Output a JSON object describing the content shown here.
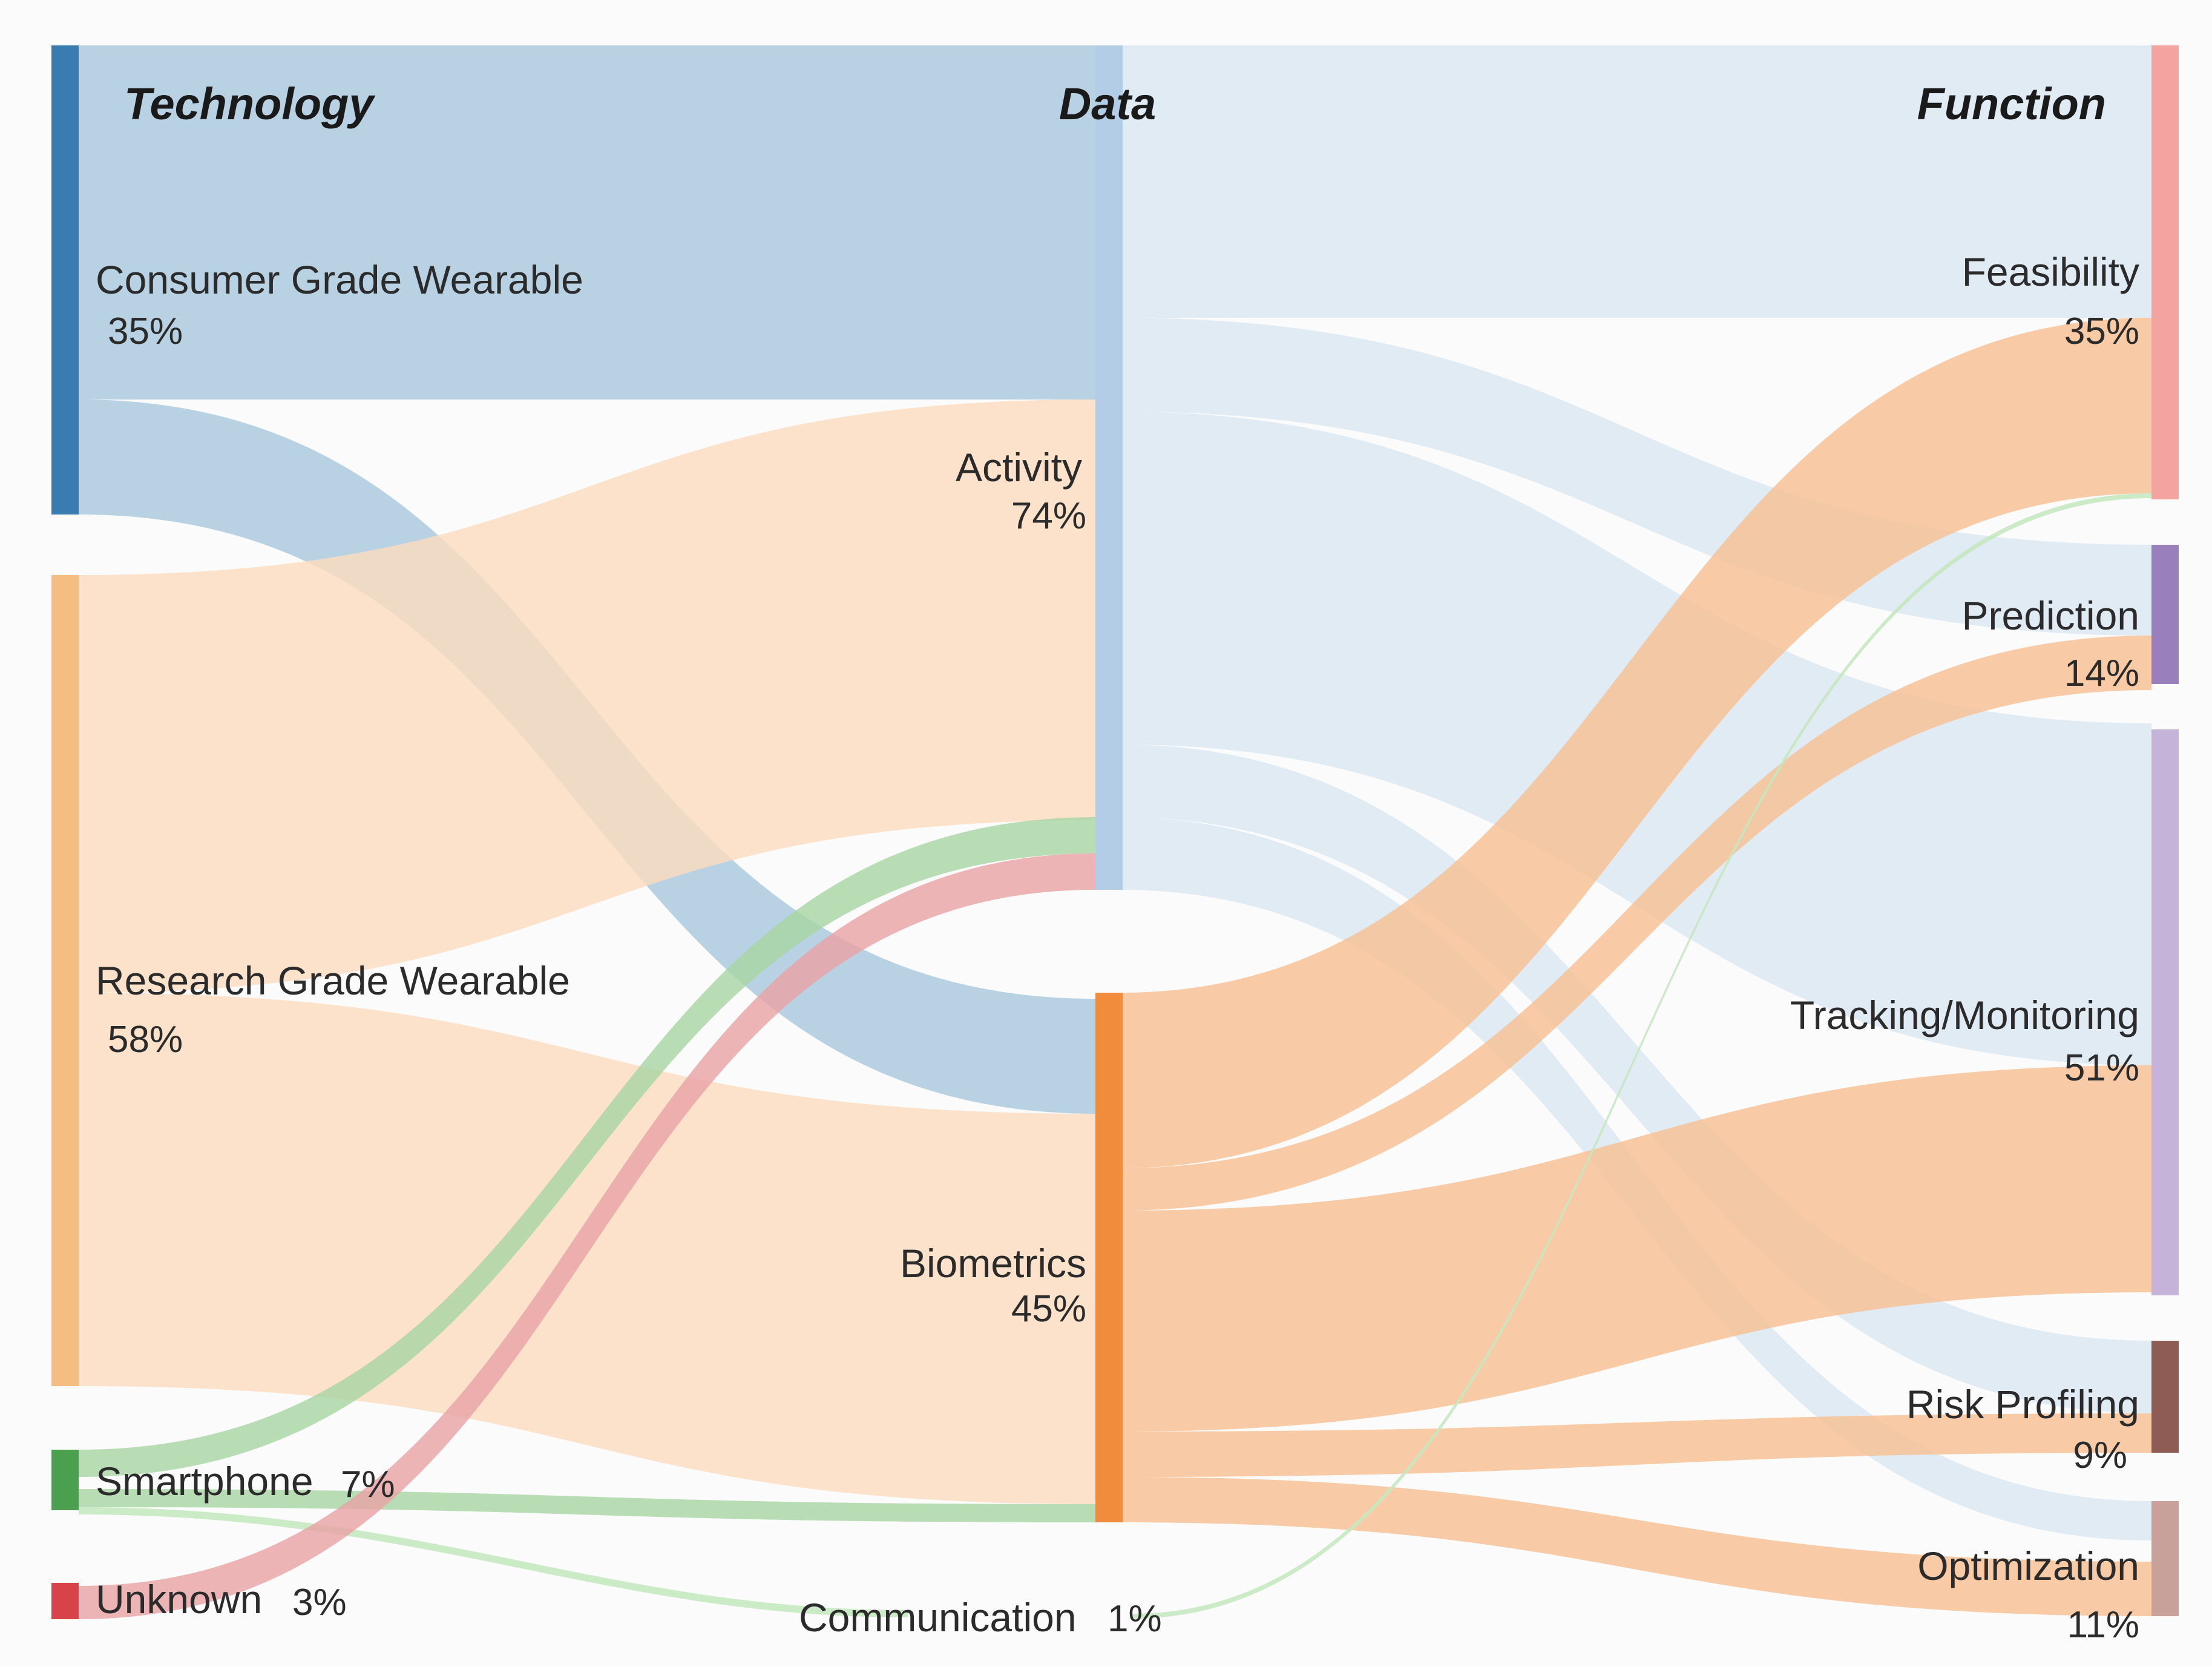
{
  "columns": {
    "technology": "Technology",
    "data": "Data",
    "function": "Function"
  },
  "nodes": {
    "consumer": {
      "label": "Consumer Grade Wearable",
      "pct": "35%",
      "color": "#3a7bb0"
    },
    "research": {
      "label": "Research Grade Wearable",
      "pct": "58%",
      "color": "#f6bd83"
    },
    "smartphone": {
      "label": "Smartphone",
      "pct": "7%",
      "color": "#4ba04f"
    },
    "unknown": {
      "label": "Unknown",
      "pct": "3%",
      "color": "#d8434a"
    },
    "activity": {
      "label": "Activity",
      "pct": "74%",
      "color": "#b3cde6"
    },
    "biometrics": {
      "label": "Biometrics",
      "pct": "45%",
      "color": "#f28c3d"
    },
    "communication": {
      "label": "Communication",
      "pct": "1%",
      "color": "#a9dba3"
    },
    "feasibility": {
      "label": "Feasibility",
      "pct": "35%",
      "color": "#f4a4a0"
    },
    "prediction": {
      "label": "Prediction",
      "pct": "14%",
      "color": "#9980bd"
    },
    "tracking": {
      "label": "Tracking/Monitoring",
      "pct": "51%",
      "color": "#c5b3d9"
    },
    "risk": {
      "label": "Risk Profiling",
      "pct": "9%",
      "color": "#8e5b55"
    },
    "optimization": {
      "label": "Optimization",
      "pct": "11%",
      "color": "#c9a19b"
    }
  },
  "link_colors": {
    "consumer": "#a8c7dd",
    "research": "#fbdcc0",
    "smartphone": "#a8d5a3",
    "unknown": "#e9a3a6",
    "activity": "#d9e6f2",
    "biometrics": "#f7bf93",
    "communication": "#c5e8c0"
  }
}
